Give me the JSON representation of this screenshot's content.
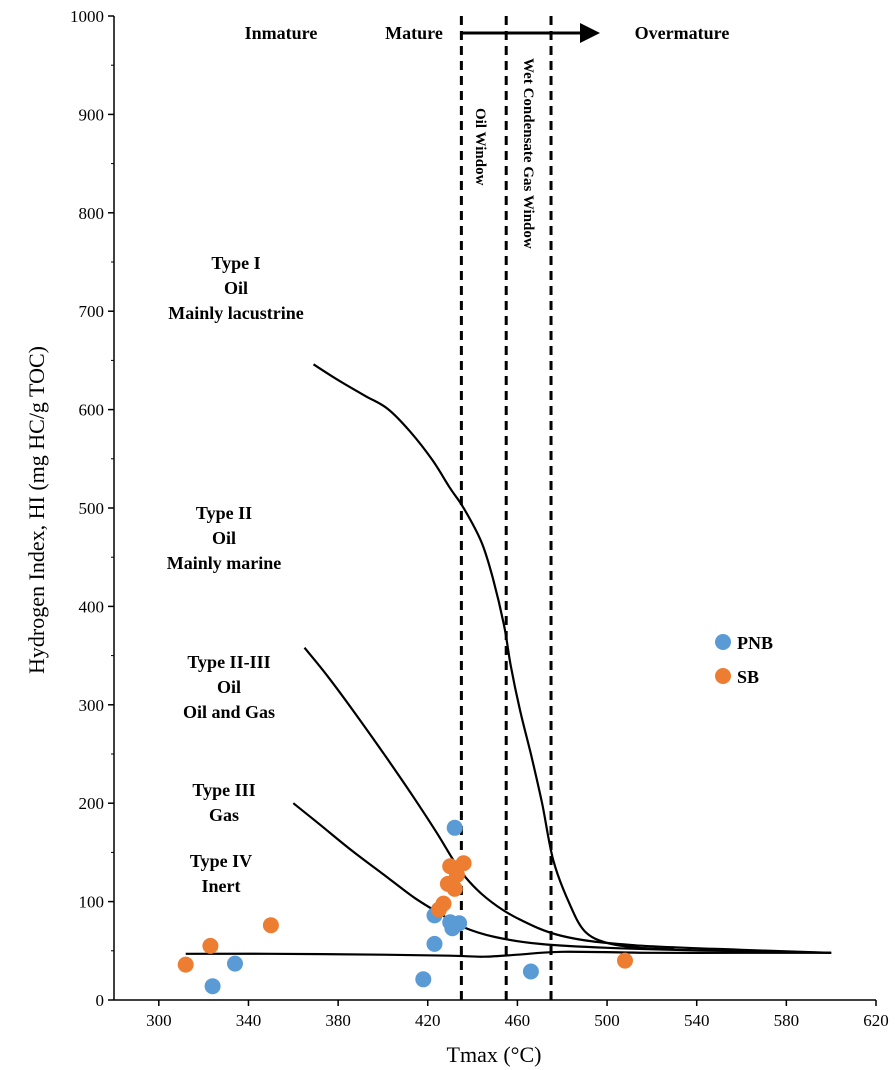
{
  "chart_data": {
    "type": "scatter",
    "xlabel": "Tmax (°C)",
    "ylabel": "Hydrogen Index, HI (mg HC/g TOC)",
    "xlim": [
      280,
      620
    ],
    "ylim": [
      0,
      1000
    ],
    "x_ticks": [
      300,
      340,
      380,
      420,
      460,
      500,
      540,
      580,
      620
    ],
    "y_ticks": [
      0,
      100,
      200,
      300,
      400,
      500,
      600,
      700,
      800,
      900,
      1000
    ],
    "grid": false,
    "legend_position": "right",
    "colors": {
      "PNB": "#5b9bd5",
      "SB": "#ed7d31"
    },
    "series": [
      {
        "name": "PNB",
        "points": [
          [
            324,
            14
          ],
          [
            334,
            37
          ],
          [
            418,
            21
          ],
          [
            423,
            57
          ],
          [
            423,
            86
          ],
          [
            430,
            79
          ],
          [
            431,
            73
          ],
          [
            432,
            175
          ],
          [
            434,
            78
          ],
          [
            466,
            29
          ]
        ]
      },
      {
        "name": "SB",
        "points": [
          [
            312,
            36
          ],
          [
            323,
            55
          ],
          [
            350,
            76
          ],
          [
            425,
            92
          ],
          [
            427,
            98
          ],
          [
            429,
            118
          ],
          [
            430,
            136
          ],
          [
            432,
            113
          ],
          [
            433,
            127
          ],
          [
            436,
            139
          ],
          [
            508,
            40
          ]
        ]
      }
    ],
    "boundary_lines": {
      "vertical_dashed_x": [
        435,
        455,
        475
      ],
      "curves": [
        [
          [
            369,
            646
          ],
          [
            380,
            630
          ],
          [
            392,
            614
          ],
          [
            402,
            601
          ],
          [
            412,
            578
          ],
          [
            422,
            549
          ],
          [
            430,
            520
          ],
          [
            436,
            500
          ],
          [
            444,
            465
          ],
          [
            449,
            429
          ],
          [
            454,
            381
          ],
          [
            457,
            340
          ],
          [
            461,
            296
          ],
          [
            466,
            250
          ],
          [
            471,
            200
          ],
          [
            476,
            142
          ],
          [
            483,
            99
          ],
          [
            490,
            70
          ],
          [
            500,
            58
          ],
          [
            515,
            53
          ],
          [
            530,
            52
          ]
        ],
        [
          [
            365,
            358
          ],
          [
            375,
            330
          ],
          [
            388,
            290
          ],
          [
            402,
            245
          ],
          [
            414,
            205
          ],
          [
            424,
            170
          ],
          [
            435,
            130
          ],
          [
            446,
            104
          ],
          [
            460,
            83
          ],
          [
            480,
            65
          ],
          [
            510,
            56
          ],
          [
            560,
            51
          ],
          [
            600,
            48
          ]
        ],
        [
          [
            360,
            200
          ],
          [
            372,
            178
          ],
          [
            386,
            152
          ],
          [
            400,
            128
          ],
          [
            414,
            104
          ],
          [
            426,
            87
          ],
          [
            436,
            74
          ],
          [
            450,
            64
          ],
          [
            470,
            57
          ],
          [
            500,
            53
          ],
          [
            550,
            50
          ],
          [
            600,
            48
          ]
        ],
        [
          [
            312,
            47
          ],
          [
            350,
            47
          ],
          [
            400,
            46
          ],
          [
            430,
            45
          ],
          [
            445,
            44
          ],
          [
            460,
            46
          ],
          [
            480,
            49
          ],
          [
            520,
            48
          ],
          [
            560,
            48
          ],
          [
            600,
            48
          ]
        ]
      ]
    },
    "annotations": {
      "type_i": [
        "Type I",
        "Oil",
        "Mainly lacustrine"
      ],
      "type_ii": [
        "Type II",
        "Oil",
        "Mainly marine"
      ],
      "type_ii_iii": [
        "Type II-III",
        "Oil",
        "Oil and Gas"
      ],
      "type_iii": [
        "Type III",
        "Gas"
      ],
      "type_iv": [
        "Type IV",
        "Inert"
      ],
      "inmature": "Inmature",
      "mature": "Mature",
      "overmature": "Overmature",
      "oil_window": "Oil Window",
      "wet_gas_window": "Wet Condensate Gas Window"
    }
  }
}
